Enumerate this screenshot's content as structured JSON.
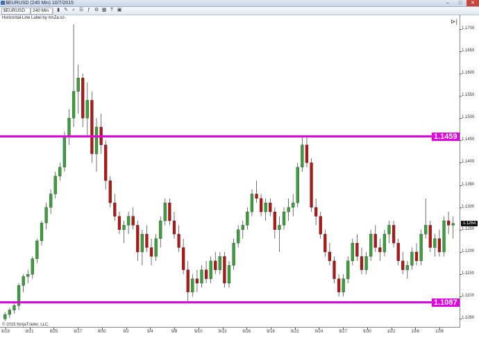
{
  "window": {
    "title": "$EURUSD (240 Min)  10/7/2015",
    "minimize": "–",
    "maximize": "□",
    "close": "✕"
  },
  "toolbar": {
    "instrument": "$EURUSD",
    "period": "240 Min",
    "icons": [
      "chart-style-icon",
      "pencil-icon",
      "zoom-icon",
      "properties-icon",
      "indicator-icon",
      "strategy-icon",
      "grid-icon",
      "text-icon",
      "data-box-icon"
    ]
  },
  "indicator_label": "Horizontal-Line Label by mnZa.co",
  "copyright": "© 2015 NinjaTrader, LLC",
  "nav_icon": "⊳|",
  "colors": {
    "up": "#3a9e3a",
    "down": "#b01818",
    "level": "#e000e0"
  },
  "levels": [
    {
      "value": 1.1459,
      "label": "1.1459"
    },
    {
      "value": 1.1087,
      "label": "1.1087"
    }
  ],
  "last_price": "1.1264",
  "y_axis": {
    "min": 1.1032,
    "max": 1.1732,
    "ticks": [
      "1.1700",
      "1.1650",
      "1.1600",
      "1.1550",
      "1.1500",
      "1.1450",
      "1.1400",
      "1.1350",
      "1.1300",
      "1.1250",
      "1.1200",
      "1.1150",
      "1.1100",
      "1.1050"
    ]
  },
  "x_axis": {
    "ticks": [
      "8/19",
      "8/21",
      "8/25",
      "8/27",
      "8/30",
      "9/2",
      "9/4",
      "9/8",
      "9/10",
      "9/13",
      "9/16",
      "9/18",
      "9/22",
      "9/24",
      "9/27",
      "9/30",
      "10/2",
      "10/6",
      "10/8"
    ]
  },
  "chart_data": {
    "type": "candlestick",
    "title": "$EURUSD (240 Min)",
    "candles": [
      [
        1.105,
        1.1065,
        1.1045,
        1.106
      ],
      [
        1.106,
        1.1075,
        1.1052,
        1.107
      ],
      [
        1.107,
        1.1085,
        1.1062,
        1.108
      ],
      [
        1.108,
        1.113,
        1.107,
        1.1125
      ],
      [
        1.1125,
        1.115,
        1.111,
        1.1145
      ],
      [
        1.1145,
        1.116,
        1.113,
        1.115
      ],
      [
        1.115,
        1.119,
        1.114,
        1.1185
      ],
      [
        1.1185,
        1.123,
        1.1175,
        1.1225
      ],
      [
        1.1225,
        1.127,
        1.1215,
        1.1265
      ],
      [
        1.1265,
        1.131,
        1.125,
        1.13
      ],
      [
        1.13,
        1.134,
        1.1285,
        1.133
      ],
      [
        1.133,
        1.138,
        1.132,
        1.137
      ],
      [
        1.137,
        1.14,
        1.136,
        1.139
      ],
      [
        1.139,
        1.147,
        1.138,
        1.146
      ],
      [
        1.146,
        1.152,
        1.144,
        1.15
      ],
      [
        1.15,
        1.171,
        1.148,
        1.156
      ],
      [
        1.156,
        1.162,
        1.151,
        1.159
      ],
      [
        1.159,
        1.16,
        1.148,
        1.15
      ],
      [
        1.15,
        1.158,
        1.146,
        1.154
      ],
      [
        1.154,
        1.156,
        1.14,
        1.142
      ],
      [
        1.142,
        1.15,
        1.138,
        1.148
      ],
      [
        1.148,
        1.151,
        1.142,
        1.144
      ],
      [
        1.144,
        1.145,
        1.134,
        1.136
      ],
      [
        1.136,
        1.137,
        1.13,
        1.131
      ],
      [
        1.131,
        1.133,
        1.127,
        1.128
      ],
      [
        1.128,
        1.129,
        1.124,
        1.125
      ],
      [
        1.125,
        1.127,
        1.122,
        1.126
      ],
      [
        1.126,
        1.129,
        1.124,
        1.128
      ],
      [
        1.128,
        1.13,
        1.125,
        1.126
      ],
      [
        1.126,
        1.127,
        1.118,
        1.12
      ],
      [
        1.12,
        1.125,
        1.117,
        1.124
      ],
      [
        1.124,
        1.126,
        1.12,
        1.121
      ],
      [
        1.121,
        1.123,
        1.117,
        1.119
      ],
      [
        1.119,
        1.124,
        1.118,
        1.123
      ],
      [
        1.123,
        1.128,
        1.121,
        1.127
      ],
      [
        1.127,
        1.132,
        1.126,
        1.131
      ],
      [
        1.131,
        1.132,
        1.126,
        1.127
      ],
      [
        1.127,
        1.129,
        1.123,
        1.124
      ],
      [
        1.124,
        1.126,
        1.12,
        1.121
      ],
      [
        1.121,
        1.123,
        1.115,
        1.116
      ],
      [
        1.116,
        1.118,
        1.109,
        1.111
      ],
      [
        1.111,
        1.115,
        1.11,
        1.114
      ],
      [
        1.114,
        1.116,
        1.111,
        1.113
      ],
      [
        1.113,
        1.117,
        1.112,
        1.116
      ],
      [
        1.116,
        1.118,
        1.113,
        1.114
      ],
      [
        1.114,
        1.119,
        1.113,
        1.118
      ],
      [
        1.118,
        1.12,
        1.115,
        1.116
      ],
      [
        1.116,
        1.12,
        1.115,
        1.119
      ],
      [
        1.119,
        1.12,
        1.112,
        1.113
      ],
      [
        1.113,
        1.118,
        1.112,
        1.117
      ],
      [
        1.117,
        1.123,
        1.116,
        1.122
      ],
      [
        1.122,
        1.126,
        1.121,
        1.125
      ],
      [
        1.125,
        1.127,
        1.123,
        1.126
      ],
      [
        1.126,
        1.13,
        1.125,
        1.129
      ],
      [
        1.129,
        1.134,
        1.128,
        1.133
      ],
      [
        1.133,
        1.136,
        1.131,
        1.132
      ],
      [
        1.132,
        1.133,
        1.128,
        1.129
      ],
      [
        1.129,
        1.132,
        1.127,
        1.131
      ],
      [
        1.131,
        1.132,
        1.128,
        1.129
      ],
      [
        1.129,
        1.13,
        1.123,
        1.125
      ],
      [
        1.125,
        1.128,
        1.12,
        1.126
      ],
      [
        1.126,
        1.13,
        1.125,
        1.129
      ],
      [
        1.129,
        1.132,
        1.127,
        1.13
      ],
      [
        1.13,
        1.133,
        1.128,
        1.131
      ],
      [
        1.131,
        1.14,
        1.13,
        1.139
      ],
      [
        1.139,
        1.146,
        1.138,
        1.144
      ],
      [
        1.144,
        1.146,
        1.139,
        1.14
      ],
      [
        1.14,
        1.141,
        1.129,
        1.13
      ],
      [
        1.13,
        1.132,
        1.126,
        1.128
      ],
      [
        1.128,
        1.129,
        1.123,
        1.124
      ],
      [
        1.124,
        1.125,
        1.119,
        1.12
      ],
      [
        1.12,
        1.122,
        1.117,
        1.118
      ],
      [
        1.118,
        1.119,
        1.113,
        1.114
      ],
      [
        1.114,
        1.115,
        1.11,
        1.111
      ],
      [
        1.111,
        1.115,
        1.11,
        1.114
      ],
      [
        1.114,
        1.119,
        1.113,
        1.118
      ],
      [
        1.118,
        1.123,
        1.117,
        1.122
      ],
      [
        1.122,
        1.124,
        1.118,
        1.119
      ],
      [
        1.119,
        1.121,
        1.115,
        1.116
      ],
      [
        1.116,
        1.12,
        1.115,
        1.119
      ],
      [
        1.119,
        1.125,
        1.118,
        1.124
      ],
      [
        1.124,
        1.126,
        1.12,
        1.121
      ],
      [
        1.121,
        1.123,
        1.118,
        1.12
      ],
      [
        1.12,
        1.125,
        1.119,
        1.124
      ],
      [
        1.124,
        1.127,
        1.122,
        1.126
      ],
      [
        1.126,
        1.127,
        1.121,
        1.122
      ],
      [
        1.122,
        1.123,
        1.117,
        1.118
      ],
      [
        1.118,
        1.12,
        1.115,
        1.116
      ],
      [
        1.116,
        1.118,
        1.114,
        1.117
      ],
      [
        1.117,
        1.121,
        1.116,
        1.12
      ],
      [
        1.12,
        1.122,
        1.117,
        1.118
      ],
      [
        1.118,
        1.125,
        1.117,
        1.124
      ],
      [
        1.124,
        1.132,
        1.123,
        1.126
      ],
      [
        1.126,
        1.127,
        1.12,
        1.121
      ],
      [
        1.121,
        1.124,
        1.119,
        1.123
      ],
      [
        1.123,
        1.125,
        1.119,
        1.12
      ],
      [
        1.12,
        1.128,
        1.119,
        1.127
      ],
      [
        1.127,
        1.129,
        1.124,
        1.126
      ],
      [
        1.126,
        1.128,
        1.123,
        1.1264
      ]
    ]
  }
}
